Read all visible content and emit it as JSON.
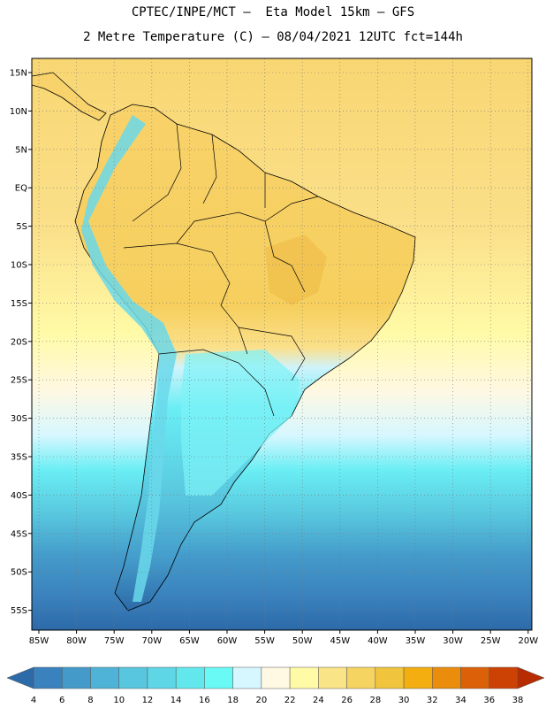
{
  "header": {
    "line1": "CPTEC/INPE/MCT –  Eta Model 15km – GFS",
    "line2": "2 Metre Temperature (C) – 08/04/2021 12UTC fct=144h"
  },
  "map": {
    "lat_labels": [
      "15N",
      "10N",
      "5N",
      "EQ",
      "5S",
      "10S",
      "15S",
      "20S",
      "25S",
      "30S",
      "35S",
      "40S",
      "45S",
      "50S",
      "55S"
    ],
    "lon_labels": [
      "85W",
      "80W",
      "75W",
      "70W",
      "65W",
      "60W",
      "55W",
      "50W",
      "45W",
      "40W",
      "35W",
      "30W",
      "25W",
      "20W"
    ]
  },
  "colorbar": {
    "ticks": [
      "4",
      "6",
      "8",
      "10",
      "12",
      "14",
      "16",
      "18",
      "20",
      "22",
      "24",
      "26",
      "28",
      "30",
      "32",
      "34",
      "36",
      "38"
    ],
    "colors": [
      "#2c6aa8",
      "#3a82be",
      "#449bca",
      "#4eb3d6",
      "#58c6de",
      "#5ed6e6",
      "#62e8ec",
      "#6afaf6",
      "#d6f7ff",
      "#fff8e2",
      "#fffaa6",
      "#fae488",
      "#f6d462",
      "#f0c43c",
      "#f4ae10",
      "#ea8c0c",
      "#dc6008",
      "#cc4204",
      "#b82c02"
    ]
  }
}
